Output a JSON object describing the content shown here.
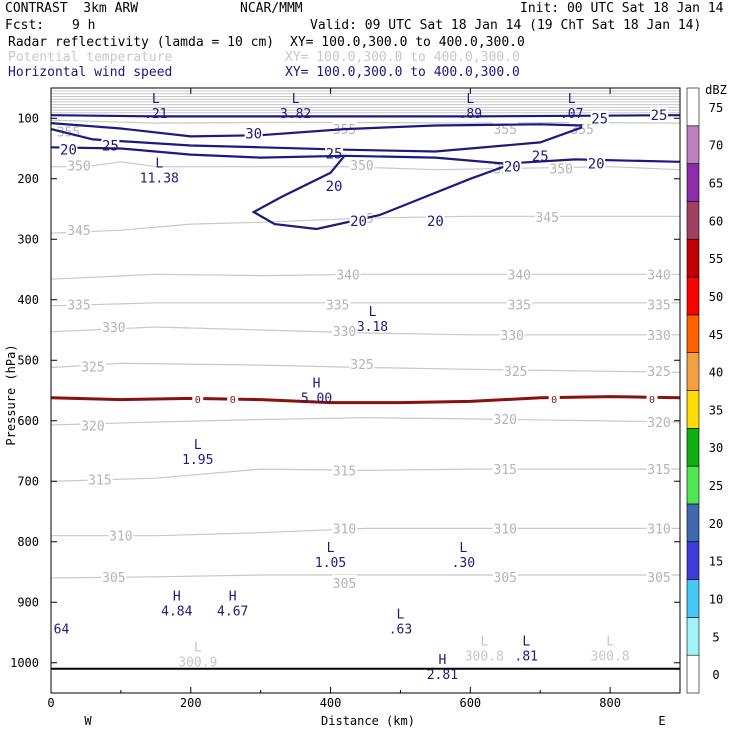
{
  "header": {
    "model": "CONTRAST  3km ARW",
    "center": "NCAR/MMM",
    "init": "Init: 00 UTC Sat 18 Jan 14",
    "fcst_label": "Fcst:",
    "fcst_value": "9 h",
    "valid": "Valid: 09 UTC Sat 18 Jan 14 (19 ChT Sat 18 Jan 14)",
    "fields": [
      {
        "name": "Radar reflectivity (lamda = 10 cm)",
        "xy": "XY= 100.0,300.0 to 400.0,300.0",
        "color": "#000000"
      },
      {
        "name": "Potential temperature",
        "xy": "XY= 100.0,300.0 to 400.0,300.0",
        "color": "#c8c8c8"
      },
      {
        "name": "Horizontal wind speed",
        "xy": "XY= 100.0,300.0 to 400.0,300.0",
        "color": "#1a1a80"
      }
    ]
  },
  "chart_data": {
    "type": "cross-section",
    "xlabel": "Distance (km)",
    "ylabel": "Pressure (hPa)",
    "xlim": [
      0,
      900
    ],
    "ylim": [
      1050,
      50
    ],
    "x_ticks": [
      0,
      200,
      400,
      600,
      800
    ],
    "y_ticks": [
      100,
      200,
      300,
      400,
      500,
      600,
      700,
      800,
      900,
      1000
    ],
    "x_ends": {
      "left": "W",
      "right": "E"
    },
    "theta_contours": [
      {
        "value": 355,
        "points": [
          [
            0,
            103
          ],
          [
            150,
            108
          ],
          [
            300,
            107
          ],
          [
            450,
            107
          ],
          [
            600,
            108
          ],
          [
            750,
            107
          ],
          [
            900,
            108
          ]
        ],
        "labels": [
          [
            25,
            122
          ],
          [
            420,
            118
          ],
          [
            650,
            118
          ],
          [
            760,
            118
          ]
        ]
      },
      {
        "value": 350,
        "points": [
          [
            0,
            180
          ],
          [
            50,
            180
          ],
          [
            100,
            172
          ],
          [
            150,
            180
          ],
          [
            300,
            180
          ],
          [
            420,
            180
          ],
          [
            550,
            185
          ],
          [
            650,
            183
          ],
          [
            800,
            180
          ],
          [
            900,
            185
          ]
        ],
        "labels": [
          [
            40,
            178
          ],
          [
            445,
            177
          ],
          [
            650,
            183
          ],
          [
            730,
            183
          ]
        ]
      },
      {
        "value": 345,
        "points": [
          [
            0,
            290
          ],
          [
            100,
            285
          ],
          [
            200,
            275
          ],
          [
            300,
            272
          ],
          [
            450,
            265
          ],
          [
            600,
            262
          ],
          [
            900,
            262
          ]
        ],
        "labels": [
          [
            40,
            285
          ],
          [
            445,
            265
          ],
          [
            710,
            263
          ]
        ]
      },
      {
        "value": 340,
        "points": [
          [
            0,
            366
          ],
          [
            150,
            358
          ],
          [
            300,
            360
          ],
          [
            450,
            358
          ],
          [
            600,
            358
          ],
          [
            900,
            358
          ]
        ],
        "labels": [
          [
            425,
            358
          ],
          [
            670,
            358
          ],
          [
            870,
            358
          ]
        ]
      },
      {
        "value": 335,
        "points": [
          [
            0,
            410
          ],
          [
            150,
            405
          ],
          [
            300,
            405
          ],
          [
            450,
            405
          ],
          [
            600,
            405
          ],
          [
            900,
            405
          ]
        ],
        "labels": [
          [
            40,
            408
          ],
          [
            410,
            408
          ],
          [
            670,
            408
          ],
          [
            870,
            408
          ]
        ]
      },
      {
        "value": 330,
        "points": [
          [
            0,
            453
          ],
          [
            150,
            445
          ],
          [
            300,
            450
          ],
          [
            450,
            455
          ],
          [
            600,
            458
          ],
          [
            900,
            458
          ]
        ],
        "labels": [
          [
            90,
            445
          ],
          [
            420,
            452
          ],
          [
            660,
            458
          ],
          [
            870,
            458
          ]
        ]
      },
      {
        "value": 325,
        "points": [
          [
            0,
            512
          ],
          [
            100,
            505
          ],
          [
            300,
            508
          ],
          [
            450,
            512
          ],
          [
            600,
            515
          ],
          [
            900,
            520
          ]
        ],
        "labels": [
          [
            60,
            510
          ],
          [
            445,
            506
          ],
          [
            665,
            518
          ],
          [
            870,
            518
          ]
        ]
      },
      {
        "value": 320,
        "points": [
          [
            0,
            607
          ],
          [
            150,
            602
          ],
          [
            300,
            598
          ],
          [
            450,
            595
          ],
          [
            600,
            597
          ],
          [
            900,
            602
          ]
        ],
        "labels": [
          [
            60,
            608
          ],
          [
            650,
            597
          ],
          [
            870,
            602
          ]
        ]
      },
      {
        "value": 315,
        "points": [
          [
            0,
            700
          ],
          [
            150,
            695
          ],
          [
            300,
            680
          ],
          [
            450,
            682
          ],
          [
            600,
            680
          ],
          [
            900,
            680
          ]
        ],
        "labels": [
          [
            70,
            697
          ],
          [
            420,
            682
          ],
          [
            650,
            680
          ],
          [
            870,
            680
          ]
        ]
      },
      {
        "value": 310,
        "points": [
          [
            0,
            790
          ],
          [
            150,
            790
          ],
          [
            300,
            785
          ],
          [
            450,
            778
          ],
          [
            600,
            778
          ],
          [
            900,
            778
          ]
        ],
        "labels": [
          [
            100,
            790
          ],
          [
            420,
            778
          ],
          [
            650,
            778
          ],
          [
            870,
            778
          ]
        ]
      },
      {
        "value": 305,
        "points": [
          [
            0,
            860
          ],
          [
            150,
            858
          ],
          [
            300,
            855
          ],
          [
            450,
            855
          ],
          [
            600,
            855
          ],
          [
            900,
            855
          ]
        ],
        "labels": [
          [
            90,
            858
          ],
          [
            420,
            868
          ],
          [
            650,
            858
          ],
          [
            870,
            858
          ]
        ]
      }
    ],
    "wind_contours": [
      {
        "value": 25,
        "points": [
          [
            0,
            95
          ],
          [
            150,
            97
          ],
          [
            300,
            97
          ],
          [
            450,
            97
          ],
          [
            600,
            97
          ],
          [
            750,
            96
          ],
          [
            900,
            95
          ]
        ],
        "labels": [
          [
            870,
            95
          ],
          [
            785,
            100
          ]
        ]
      },
      {
        "value": 30,
        "points": [
          [
            0,
            108
          ],
          [
            100,
            117
          ],
          [
            200,
            130
          ],
          [
            300,
            128
          ],
          [
            420,
            118
          ],
          [
            550,
            112
          ],
          [
            700,
            110
          ],
          [
            760,
            112
          ]
        ],
        "labels": [
          [
            290,
            125
          ]
        ]
      },
      {
        "value": 25,
        "points": [
          [
            0,
            118
          ],
          [
            60,
            135
          ],
          [
            200,
            145
          ],
          [
            300,
            148
          ],
          [
            420,
            152
          ],
          [
            550,
            155
          ],
          [
            700,
            140
          ],
          [
            760,
            115
          ]
        ],
        "labels": [
          [
            85,
            145
          ],
          [
            405,
            158
          ],
          [
            700,
            162
          ]
        ]
      },
      {
        "value": 20,
        "points": [
          [
            0,
            148
          ],
          [
            100,
            150
          ],
          [
            200,
            160
          ],
          [
            300,
            165
          ],
          [
            420,
            162
          ],
          [
            550,
            165
          ],
          [
            650,
            175
          ],
          [
            750,
            168
          ],
          [
            900,
            172
          ]
        ],
        "labels": [
          [
            25,
            152
          ],
          [
            780,
            175
          ]
        ]
      },
      {
        "value": 20,
        "points": [
          [
            420,
            162
          ],
          [
            400,
            190
          ],
          [
            330,
            230
          ],
          [
            290,
            255
          ],
          [
            320,
            275
          ],
          [
            380,
            283
          ],
          [
            470,
            260
          ],
          [
            600,
            200
          ],
          [
            660,
            175
          ]
        ],
        "labels": [
          [
            405,
            212
          ],
          [
            440,
            270
          ],
          [
            550,
            270
          ],
          [
            660,
            180
          ]
        ]
      }
    ],
    "freezing_line": {
      "value": 0,
      "points": [
        [
          0,
          562
        ],
        [
          100,
          565
        ],
        [
          200,
          563
        ],
        [
          300,
          565
        ],
        [
          400,
          570
        ],
        [
          500,
          570
        ],
        [
          600,
          568
        ],
        [
          700,
          562
        ],
        [
          800,
          560
        ],
        [
          900,
          562
        ]
      ],
      "labels": [
        [
          210,
          562
        ],
        [
          260,
          562
        ],
        [
          720,
          562
        ],
        [
          860,
          562
        ]
      ]
    },
    "surface": [
      [
        0,
        1010
      ],
      [
        900,
        1010
      ]
    ],
    "extrema": [
      {
        "type": "L",
        "value": ".21",
        "x": 150,
        "p": 78
      },
      {
        "type": "L",
        "value": "3.82",
        "x": 350,
        "p": 78
      },
      {
        "type": "L",
        "value": ".89",
        "x": 600,
        "p": 78
      },
      {
        "type": "L",
        "value": ".07",
        "x": 745,
        "p": 78
      },
      {
        "type": "L",
        "value": "11.38",
        "x": 155,
        "p": 185
      },
      {
        "type": "L",
        "value": "3.18",
        "x": 460,
        "p": 430
      },
      {
        "type": "H",
        "value": "5.00",
        "x": 380,
        "p": 548
      },
      {
        "type": "L",
        "value": "1.95",
        "x": 210,
        "p": 650
      },
      {
        "type": "L",
        "value": "1.05",
        "x": 400,
        "p": 820
      },
      {
        "type": "L",
        "value": ".30",
        "x": 590,
        "p": 820
      },
      {
        "type": "H",
        "value": "4.84",
        "x": 180,
        "p": 900
      },
      {
        "type": "H",
        "value": "4.67",
        "x": 260,
        "p": 900
      },
      {
        "type": "L",
        "value": ".63",
        "x": 500,
        "p": 930
      },
      {
        "type": "L",
        "value": ".81",
        "x": 680,
        "p": 975
      },
      {
        "type": "H",
        "value": "2.81",
        "x": 560,
        "p": 1005
      },
      {
        "type": "L",
        "value": "300.9",
        "x": 210,
        "p": 985,
        "color": "#c8c8c8"
      },
      {
        "type": "L",
        "value": "300.8",
        "x": 620,
        "p": 975,
        "color": "#c8c8c8"
      },
      {
        "type": "L",
        "value": "300.8",
        "x": 800,
        "p": 975,
        "color": "#c8c8c8"
      },
      {
        "type": "",
        "value": "64",
        "x": 15,
        "p": 930
      }
    ],
    "colorbar": {
      "label": "dBZ",
      "levels": [
        0,
        5,
        10,
        15,
        20,
        25,
        30,
        35,
        40,
        45,
        50,
        55,
        60,
        65,
        70,
        75
      ],
      "colors": [
        "#ffffff",
        "#9ff5f5",
        "#44c8f5",
        "#3c3cd8",
        "#4068b0",
        "#50e850",
        "#10b010",
        "#ffdc00",
        "#f5a040",
        "#ff6000",
        "#ff0000",
        "#c00000",
        "#a04060",
        "#8c2ca8",
        "#c080c0",
        "#ffffff"
      ]
    }
  }
}
